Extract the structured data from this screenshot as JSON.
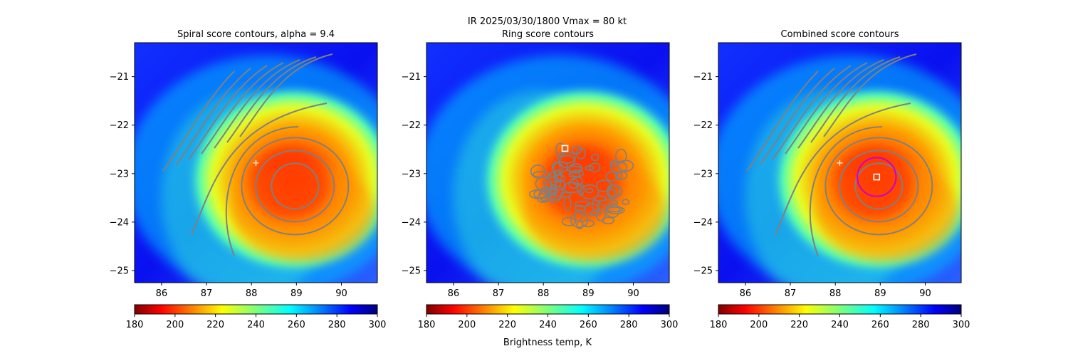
{
  "figure": {
    "suptitle_line1": "IR  2025/03/30/1800    Vmax = 80 kt",
    "colorbar_label": "Brightness temp, K"
  },
  "chart_data": [
    {
      "type": "heatmap",
      "title": "Spiral score contours, alpha =  9.4",
      "xlim": [
        85.4,
        90.8
      ],
      "ylim": [
        -25.25,
        -20.3
      ],
      "xticks": [
        86,
        87,
        88,
        89,
        90
      ],
      "yticks": [
        -21,
        -22,
        -23,
        -24,
        -25
      ],
      "markers": [
        {
          "kind": "plus",
          "x": 88.1,
          "y": -22.78,
          "color": "#ffffff"
        }
      ],
      "overlay": "spiral contour lines",
      "colormap": "jet_r",
      "colorbar": {
        "range": [
          180,
          300
        ],
        "ticks": [
          180,
          200,
          220,
          240,
          260,
          280,
          300
        ]
      }
    },
    {
      "type": "heatmap",
      "title": "Ring score contours",
      "xlim": [
        85.4,
        90.8
      ],
      "ylim": [
        -25.25,
        -20.3
      ],
      "xticks": [
        86,
        87,
        88,
        89,
        90
      ],
      "yticks": [
        -21,
        -22,
        -23,
        -24,
        -25
      ],
      "markers": [
        {
          "kind": "square",
          "x": 88.48,
          "y": -22.48,
          "color": "#ffffff"
        }
      ],
      "overlay": "ring contour lines",
      "colormap": "jet_r",
      "colorbar": {
        "range": [
          180,
          300
        ],
        "ticks": [
          180,
          200,
          220,
          240,
          260,
          280,
          300
        ]
      }
    },
    {
      "type": "heatmap",
      "title": "Combined score contours",
      "xlim": [
        85.4,
        90.8
      ],
      "ylim": [
        -25.25,
        -20.3
      ],
      "xticks": [
        86,
        87,
        88,
        89,
        90
      ],
      "yticks": [
        -21,
        -22,
        -23,
        -24,
        -25
      ],
      "markers": [
        {
          "kind": "plus",
          "x": 88.1,
          "y": -22.78,
          "color": "#ffffff"
        },
        {
          "kind": "square",
          "x": 88.92,
          "y": -23.07,
          "color": "#ffffff"
        },
        {
          "kind": "circle",
          "x": 88.92,
          "y": -23.07,
          "r_deg": 0.43,
          "color": "#cc00cc"
        }
      ],
      "overlay": "combined contour lines",
      "colormap": "jet_r",
      "colorbar": {
        "range": [
          180,
          300
        ],
        "ticks": [
          180,
          200,
          220,
          240,
          260,
          280,
          300
        ]
      }
    }
  ]
}
